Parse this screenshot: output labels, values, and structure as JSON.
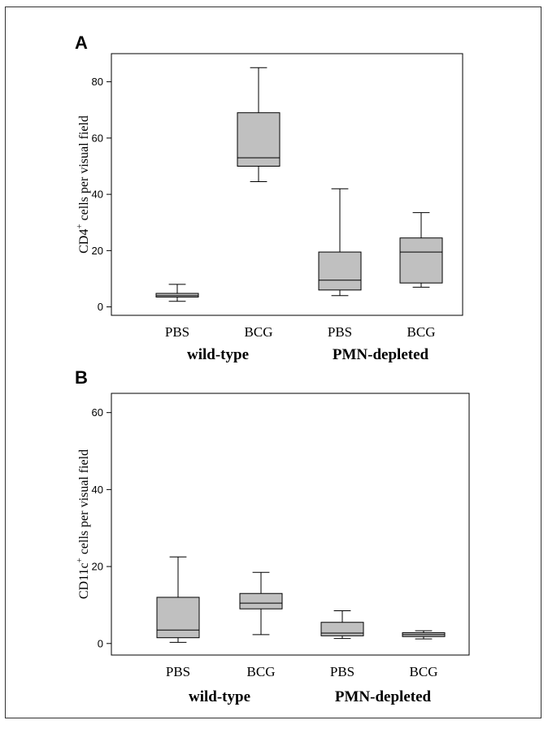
{
  "chart_data": [
    {
      "type": "box",
      "panel": "A",
      "ylabel_main": "CD4",
      "ylabel_sup": "+",
      "ylabel_rest": " cells per visual field",
      "ylim": [
        -3,
        90
      ],
      "yticks": [
        0,
        20,
        40,
        60,
        80
      ],
      "categories": [
        "PBS",
        "BCG",
        "PBS",
        "BCG"
      ],
      "groups": [
        {
          "label": "wild-type",
          "categories": [
            0,
            1
          ]
        },
        {
          "label": "PMN-depleted",
          "categories": [
            2,
            3
          ]
        }
      ],
      "boxes": [
        {
          "category": "PBS",
          "whisker_low": 2,
          "q1": 3.5,
          "median": 4,
          "q3": 4.8,
          "whisker_high": 8
        },
        {
          "category": "BCG",
          "whisker_low": 44.5,
          "q1": 50,
          "median": 53,
          "q3": 69,
          "whisker_high": 85
        },
        {
          "category": "PBS",
          "whisker_low": 4,
          "q1": 6,
          "median": 9.5,
          "q3": 19.5,
          "whisker_high": 42
        },
        {
          "category": "BCG",
          "whisker_low": 7,
          "q1": 8.5,
          "median": 19.5,
          "q3": 24.5,
          "whisker_high": 33.5
        }
      ],
      "box_color": "#c0c0c0"
    },
    {
      "type": "box",
      "panel": "B",
      "ylabel_main": "CD11c",
      "ylabel_sup": "+",
      "ylabel_rest": " cells per visual field",
      "ylim": [
        -3,
        65
      ],
      "yticks": [
        0,
        20,
        40,
        60
      ],
      "categories": [
        "PBS",
        "BCG",
        "PBS",
        "BCG"
      ],
      "groups": [
        {
          "label": "wild-type",
          "categories": [
            0,
            1
          ]
        },
        {
          "label": "PMN-depleted",
          "categories": [
            2,
            3
          ]
        }
      ],
      "boxes": [
        {
          "category": "PBS",
          "whisker_low": 0.3,
          "q1": 1.5,
          "median": 3.5,
          "q3": 12,
          "whisker_high": 22.5
        },
        {
          "category": "BCG",
          "whisker_low": 2.3,
          "q1": 9,
          "median": 10.5,
          "q3": 13,
          "whisker_high": 18.5
        },
        {
          "category": "PBS",
          "whisker_low": 1.3,
          "q1": 2,
          "median": 2.7,
          "q3": 5.5,
          "whisker_high": 8.5
        },
        {
          "category": "BCG",
          "whisker_low": 1.2,
          "q1": 1.8,
          "median": 2.3,
          "q3": 2.8,
          "whisker_high": 3.3
        }
      ],
      "box_color": "#c0c0c0"
    }
  ]
}
